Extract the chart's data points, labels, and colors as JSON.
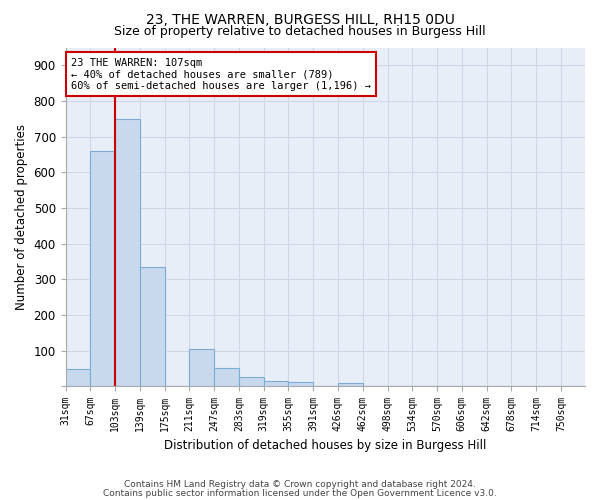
{
  "title1": "23, THE WARREN, BURGESS HILL, RH15 0DU",
  "title2": "Size of property relative to detached houses in Burgess Hill",
  "xlabel": "Distribution of detached houses by size in Burgess Hill",
  "ylabel": "Number of detached properties",
  "bin_labels": [
    "31sqm",
    "67sqm",
    "103sqm",
    "139sqm",
    "175sqm",
    "211sqm",
    "247sqm",
    "283sqm",
    "319sqm",
    "355sqm",
    "391sqm",
    "426sqm",
    "462sqm",
    "498sqm",
    "534sqm",
    "570sqm",
    "606sqm",
    "642sqm",
    "678sqm",
    "714sqm",
    "750sqm"
  ],
  "bar_heights": [
    48,
    661,
    750,
    335,
    0,
    105,
    50,
    25,
    14,
    11,
    0,
    8,
    0,
    0,
    0,
    0,
    0,
    0,
    0,
    0,
    0
  ],
  "bar_color": "#c8d9ee",
  "bar_edge_color": "#7aadd4",
  "x_min": 31,
  "x_max": 750,
  "bin_width": 36,
  "annotation_line1": "23 THE WARREN: 107sqm",
  "annotation_line2": "← 40% of detached houses are smaller (789)",
  "annotation_line3": "60% of semi-detached houses are larger (1,196) →",
  "annotation_box_color": "#ffffff",
  "annotation_box_edge": "#cc0000",
  "footer1": "Contains HM Land Registry data © Crown copyright and database right 2024.",
  "footer2": "Contains public sector information licensed under the Open Government Licence v3.0.",
  "vline_color": "#cc0000",
  "grid_color": "#d0d8e8",
  "background_color": "#e8eef8",
  "yticks": [
    0,
    100,
    200,
    300,
    400,
    500,
    600,
    700,
    800,
    900
  ],
  "ylim": [
    0,
    950
  ],
  "title1_fontsize": 10,
  "title2_fontsize": 9
}
